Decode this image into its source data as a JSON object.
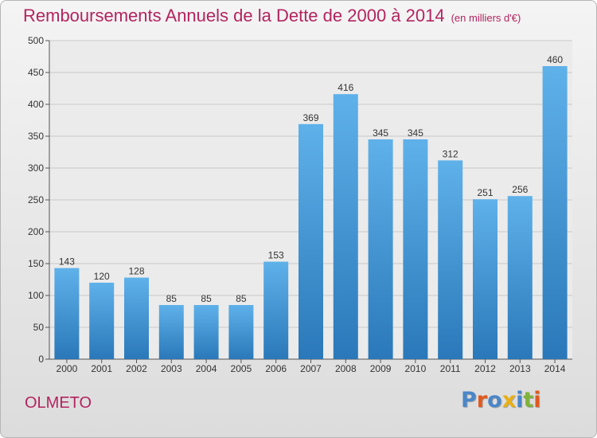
{
  "header": {
    "title": "Remboursements Annuels de la Dette de 2000 à 2014",
    "subtitle": "(en milliers d'€)"
  },
  "footer": {
    "commune": "OLMETO",
    "logo_text": "Proxiti"
  },
  "colors": {
    "title": "#b3245f",
    "bar_top": "#5fb1ea",
    "bar_bottom": "#2a78b9",
    "logo_letters": [
      "#4a86c8",
      "#e05a1e",
      "#4a86c8",
      "#e8b016",
      "#4a86c8",
      "#7fb23a",
      "#e05a1e"
    ]
  },
  "chart_data": {
    "type": "bar",
    "categories": [
      "2000",
      "2001",
      "2002",
      "2003",
      "2004",
      "2005",
      "2006",
      "2007",
      "2008",
      "2009",
      "2010",
      "2011",
      "2012",
      "2013",
      "2014"
    ],
    "values": [
      143,
      120,
      128,
      85,
      85,
      85,
      153,
      369,
      416,
      345,
      345,
      312,
      251,
      256,
      460
    ],
    "ylim": [
      0,
      500
    ],
    "yticks": [
      0,
      50,
      100,
      150,
      200,
      250,
      300,
      350,
      400,
      450,
      500
    ],
    "grid": true,
    "data_labels": true
  }
}
